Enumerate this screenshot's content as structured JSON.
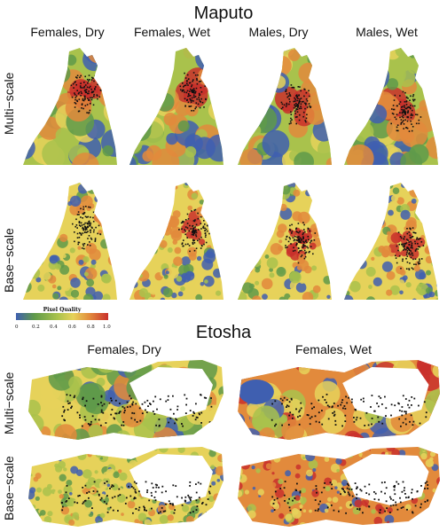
{
  "maputo": {
    "title": "Maputo",
    "columns": [
      "Females, Dry",
      "Females, Wet",
      "Males, Dry",
      "Males, Wet"
    ],
    "rows": [
      "Multi−scale",
      "Base−scale"
    ]
  },
  "legend": {
    "title": "Pixel Quality",
    "ticks": [
      "0",
      "0.2",
      "0.4",
      "0.6",
      "0.8",
      "1.0"
    ],
    "colors": [
      "#3f5fb0",
      "#5f9a4a",
      "#a9c24c",
      "#e6d25a",
      "#e28a3c",
      "#c9302c"
    ]
  },
  "etosha": {
    "title": "Etosha",
    "columns": [
      "Females, Dry",
      "Females, Wet"
    ],
    "rows": [
      "Multi−scale",
      "Base−scale"
    ]
  }
}
